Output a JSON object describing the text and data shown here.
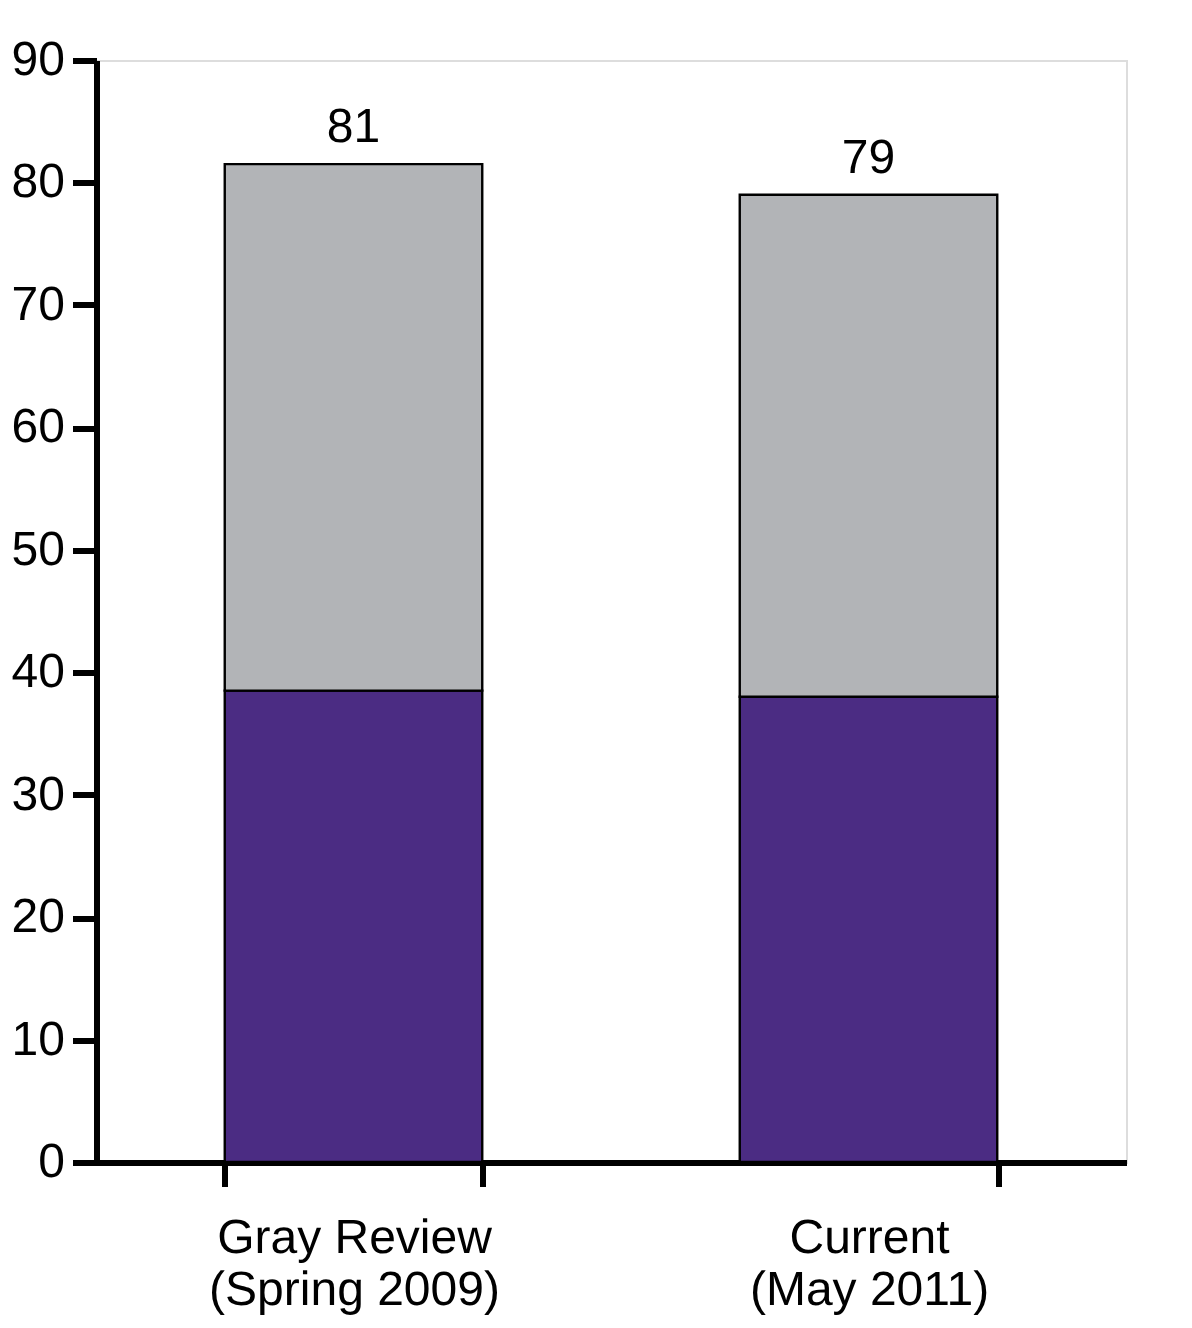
{
  "chart_data": {
    "type": "bar",
    "stacked": true,
    "categories": [
      "Gray Review\n(Spring 2009)",
      "Current\n(May 2011)"
    ],
    "series": [
      {
        "color": "#4b2c83",
        "values": [
          38.5,
          38
        ]
      },
      {
        "color": "#b2b4b7",
        "values": [
          43,
          41
        ]
      }
    ],
    "totals": [
      "81",
      "79"
    ],
    "ylim": [
      0,
      90
    ],
    "yticks": [
      0,
      10,
      20,
      30,
      40,
      50,
      60,
      70,
      80,
      90
    ],
    "grid": false,
    "legend": false
  }
}
